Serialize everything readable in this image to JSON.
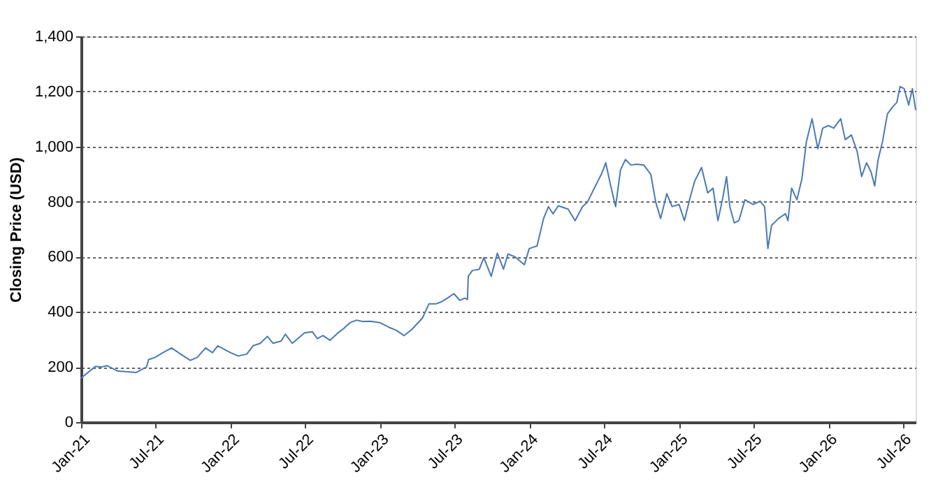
{
  "chart_data": {
    "type": "line",
    "ylabel": "Closing Price (USD)",
    "x": [
      "2021-01-01",
      "2021-02-05",
      "2021-02-20",
      "2021-03-05",
      "2021-04-01",
      "2021-05-01",
      "2021-05-15",
      "2021-06-01",
      "2021-06-10",
      "2021-06-15",
      "2021-07-01",
      "2021-07-20",
      "2021-08-10",
      "2021-09-01",
      "2021-09-25",
      "2021-10-12",
      "2021-11-01",
      "2021-11-18",
      "2021-12-01",
      "2022-01-01",
      "2022-01-20",
      "2022-02-10",
      "2022-02-25",
      "2022-03-15",
      "2022-04-01",
      "2022-04-15",
      "2022-05-05",
      "2022-05-15",
      "2022-06-01",
      "2022-07-01",
      "2022-07-20",
      "2022-08-01",
      "2022-08-15",
      "2022-09-01",
      "2022-09-20",
      "2022-10-05",
      "2022-10-20",
      "2022-11-05",
      "2022-11-20",
      "2022-12-10",
      "2023-01-01",
      "2023-01-22",
      "2023-02-10",
      "2023-03-01",
      "2023-03-20",
      "2023-04-15",
      "2023-05-01",
      "2023-05-18",
      "2023-06-01",
      "2023-06-15",
      "2023-07-01",
      "2023-07-15",
      "2023-07-28",
      "2023-08-03",
      "2023-08-05",
      "2023-08-15",
      "2023-09-01",
      "2023-09-12",
      "2023-09-30",
      "2023-10-15",
      "2023-10-30",
      "2023-11-10",
      "2023-11-27",
      "2023-12-20",
      "2024-01-01",
      "2024-01-20",
      "2024-02-05",
      "2024-02-17",
      "2024-02-28",
      "2024-03-12",
      "2024-04-05",
      "2024-04-22",
      "2024-05-10",
      "2024-05-22",
      "2024-06-08",
      "2024-06-25",
      "2024-07-06",
      "2024-07-18",
      "2024-07-30",
      "2024-08-11",
      "2024-08-23",
      "2024-09-05",
      "2024-09-20",
      "2024-10-07",
      "2024-10-24",
      "2024-11-05",
      "2024-11-17",
      "2024-12-02",
      "2024-12-15",
      "2025-01-01",
      "2025-01-14",
      "2025-01-28",
      "2025-02-08",
      "2025-02-25",
      "2025-03-12",
      "2025-03-25",
      "2025-04-06",
      "2025-04-18",
      "2025-04-27",
      "2025-05-05",
      "2025-05-16",
      "2025-05-27",
      "2025-06-11",
      "2025-07-01",
      "2025-07-18",
      "2025-07-29",
      "2025-08-06",
      "2025-08-15",
      "2025-09-01",
      "2025-09-18",
      "2025-09-24",
      "2025-10-03",
      "2025-10-16",
      "2025-10-28",
      "2025-11-08",
      "2025-11-22",
      "2025-12-06",
      "2025-12-18",
      "2026-01-01",
      "2026-01-14",
      "2026-01-31",
      "2026-02-11",
      "2026-02-26",
      "2026-03-12",
      "2026-03-23",
      "2026-04-04",
      "2026-04-15",
      "2026-04-24",
      "2026-05-02",
      "2026-05-13",
      "2026-05-25",
      "2026-06-06",
      "2026-06-17",
      "2026-06-25",
      "2026-07-05",
      "2026-07-16",
      "2026-07-25",
      "2026-08-02"
    ],
    "series": [
      {
        "color": "#4a7ab5",
        "values": [
          160,
          202,
          200,
          205,
          185,
          182,
          180,
          193,
          200,
          227,
          235,
          252,
          269,
          247,
          224,
          235,
          269,
          252,
          277,
          252,
          240,
          247,
          277,
          286,
          311,
          286,
          294,
          319,
          286,
          324,
          328,
          303,
          314,
          297,
          323,
          340,
          361,
          370,
          365,
          366,
          361,
          345,
          333,
          314,
          336,
          378,
          429,
          429,
          437,
          450,
          466,
          442,
          450,
          445,
          529,
          550,
          555,
          597,
          529,
          613,
          555,
          610,
          600,
          571,
          630,
          639,
          739,
          782,
          756,
          785,
          773,
          731,
          782,
          798,
          849,
          899,
          941,
          857,
          782,
          916,
          953,
          933,
          936,
          933,
          899,
          798,
          739,
          829,
          782,
          790,
          731,
          815,
          874,
          924,
          832,
          849,
          731,
          815,
          891,
          782,
          723,
          731,
          807,
          790,
          802,
          782,
          630,
          714,
          739,
          756,
          731,
          849,
          807,
          882,
          1017,
          1101,
          992,
          1067,
          1076,
          1067,
          1101,
          1025,
          1042,
          983,
          891,
          941,
          908,
          857,
          950,
          1017,
          1118,
          1143,
          1160,
          1218,
          1210,
          1151,
          1210,
          1134
        ]
      }
    ],
    "xlim": [
      "2021-01-01",
      "2026-08-02"
    ],
    "xticks": [
      {
        "value": "2021-01-01",
        "label": "Jan-21"
      },
      {
        "value": "2021-07-01",
        "label": "Jul-21"
      },
      {
        "value": "2022-01-01",
        "label": "Jan-22"
      },
      {
        "value": "2022-07-01",
        "label": "Jul-22"
      },
      {
        "value": "2023-01-01",
        "label": "Jan-23"
      },
      {
        "value": "2023-07-01",
        "label": "Jul-23"
      },
      {
        "value": "2024-01-01",
        "label": "Jan-24"
      },
      {
        "value": "2024-07-01",
        "label": "Jul-24"
      },
      {
        "value": "2025-01-01",
        "label": "Jan-25"
      },
      {
        "value": "2025-07-01",
        "label": "Jul-25"
      },
      {
        "value": "2026-01-01",
        "label": "Jan-26"
      },
      {
        "value": "2026-07-01",
        "label": "Jul-26"
      }
    ],
    "ylim": [
      0,
      1400
    ],
    "yticks": [
      0,
      200,
      400,
      600,
      800,
      {
        "value": 1000,
        "label": "1,000"
      },
      {
        "value": 1200,
        "label": "1,200"
      },
      {
        "value": 1400,
        "label": "1,400"
      }
    ],
    "grid": "y",
    "marker": "none",
    "line_style": "solid"
  }
}
